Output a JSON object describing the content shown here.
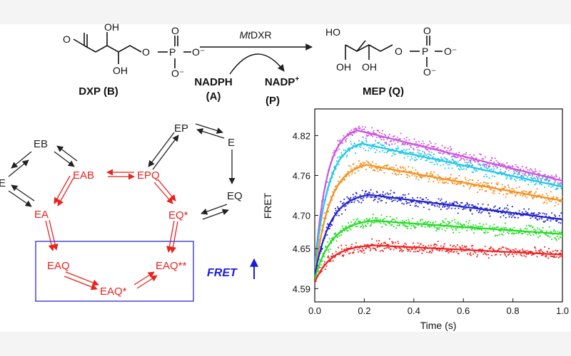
{
  "reaction": {
    "substrate_label": "DXP (B)",
    "enzyme_prefix": "Mt",
    "enzyme_suffix": "DXR",
    "cofactor_in_line1": "NADPH",
    "cofactor_in_line2": "(A)",
    "cofactor_out_main": "NADP",
    "cofactor_out_sup": "+",
    "cofactor_out_line2": "(P)",
    "product_label": "MEP (Q)",
    "atoms": {
      "O": "O",
      "OH": "OH",
      "HO": "HO",
      "P": "P",
      "O_minus": "O⁻"
    }
  },
  "mechanism": {
    "black_nodes": [
      "EB",
      "E",
      "EP",
      "E",
      "EQ"
    ],
    "red_nodes": [
      "EAB",
      "EPQ",
      "EA",
      "EQ*",
      "EAQ",
      "EAQ**",
      "EAQ*"
    ],
    "colors": {
      "black_path": "#222222",
      "red_path": "#e8231e",
      "box": "#3a3ad8"
    }
  },
  "fret_indicator": {
    "label": "FRET",
    "arrow": "up",
    "color": "#1a1adf"
  },
  "chart_data": {
    "type": "scatter",
    "xlabel": "Time (s)",
    "ylabel": "FRET",
    "xlim": [
      0,
      1.0
    ],
    "ylim": [
      4.57,
      4.86
    ],
    "xticks": [
      "0.0",
      "0.2",
      "0.4",
      "0.6",
      "0.8",
      "1.0"
    ],
    "xtick_values": [
      0,
      0.2,
      0.4,
      0.6,
      0.8,
      1.0
    ],
    "yticks": [
      "4.59",
      "4.65",
      "4.70",
      "4.76",
      "4.82"
    ],
    "ytick_values": [
      4.59,
      4.65,
      4.7,
      4.76,
      4.82
    ],
    "series": [
      {
        "color": "#cc55dd",
        "y0": 4.62,
        "peak_t": 0.17,
        "peak": 4.828,
        "y1": 4.752
      },
      {
        "color": "#22c8e8",
        "y0": 4.62,
        "peak_t": 0.19,
        "peak": 4.808,
        "y1": 4.743
      },
      {
        "color": "#f5901e",
        "y0": 4.61,
        "peak_t": 0.21,
        "peak": 4.776,
        "y1": 4.722
      },
      {
        "color": "#2222cc",
        "y0": 4.61,
        "peak_t": 0.22,
        "peak": 4.731,
        "y1": 4.694
      },
      {
        "color": "#22dd22",
        "y0": 4.605,
        "peak_t": 0.24,
        "peak": 4.692,
        "y1": 4.672
      },
      {
        "color": "#ee2222",
        "y0": 4.6,
        "peak_t": 0.24,
        "peak": 4.655,
        "y1": 4.641
      }
    ]
  }
}
